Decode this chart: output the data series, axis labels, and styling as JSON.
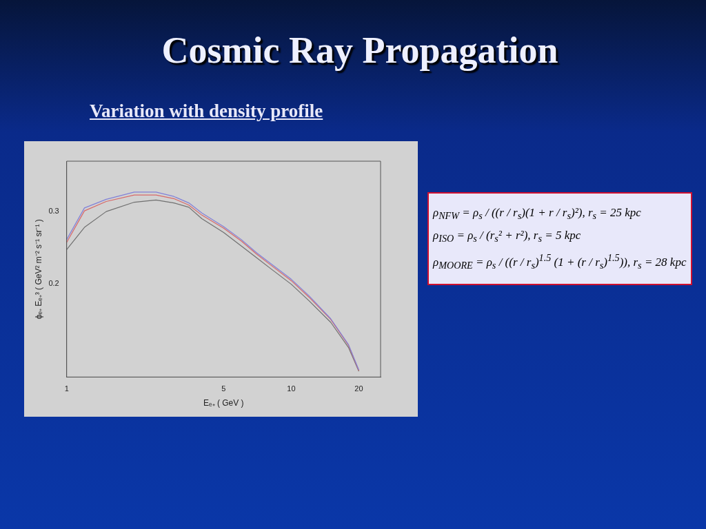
{
  "chart_data": {
    "type": "line",
    "title": "Cosmic Ray Propagation",
    "subtitle": "Variation with density profile",
    "xlabel": "Eₑ₊ ( GeV )",
    "ylabel": "ϕₑ₊ Eₑ₊³ ( GeV² m⁻² s⁻¹ sr⁻¹ )",
    "x": [
      1,
      1.2,
      1.5,
      2,
      2.5,
      3,
      3.5,
      4,
      5,
      6,
      7,
      8,
      10,
      12,
      15,
      18,
      20
    ],
    "series": [
      {
        "color": "#8080d8",
        "values": [
          0.261,
          0.305,
          0.317,
          0.327,
          0.327,
          0.321,
          0.312,
          0.298,
          0.279,
          0.261,
          0.243,
          0.229,
          0.206,
          0.183,
          0.151,
          0.115,
          0.08
        ]
      },
      {
        "color": "#d86868",
        "values": [
          0.257,
          0.301,
          0.314,
          0.323,
          0.323,
          0.318,
          0.309,
          0.295,
          0.277,
          0.259,
          0.241,
          0.227,
          0.204,
          0.181,
          0.15,
          0.114,
          0.079
        ]
      },
      {
        "color": "#707070",
        "values": [
          0.247,
          0.278,
          0.3,
          0.313,
          0.316,
          0.312,
          0.306,
          0.29,
          0.271,
          0.252,
          0.236,
          0.222,
          0.199,
          0.176,
          0.146,
          0.111,
          0.078
        ]
      }
    ],
    "log": "x",
    "xlim": [
      1,
      25
    ],
    "xticks": [
      1,
      5,
      10,
      20
    ],
    "ylim": [
      0.07,
      0.37
    ],
    "yticks": [
      0.2,
      0.3
    ],
    "grid": false,
    "legend": false,
    "marker": "none",
    "line_style": "solid",
    "annotations": [
      "ρ$_{NFW}$ = ρ$_{s}$ / ((r / r$_{s}$)(1 + r / r$_{s}$)²),  r$_{s}$ = 25 kpc",
      "ρ$_{ISO}$ = ρ$_{s}$ / (r$_{s}$² + r²),  r$_{s}$ = 5 kpc",
      "ρ$_{MOORE}$ = ρ$_{s}$ / ((r / r$_{s}$)$^{1.5}$ (1 + (r / r$_{s}$)$^{1.5}$)),  r$_{s}$ = 28 kpc"
    ]
  }
}
